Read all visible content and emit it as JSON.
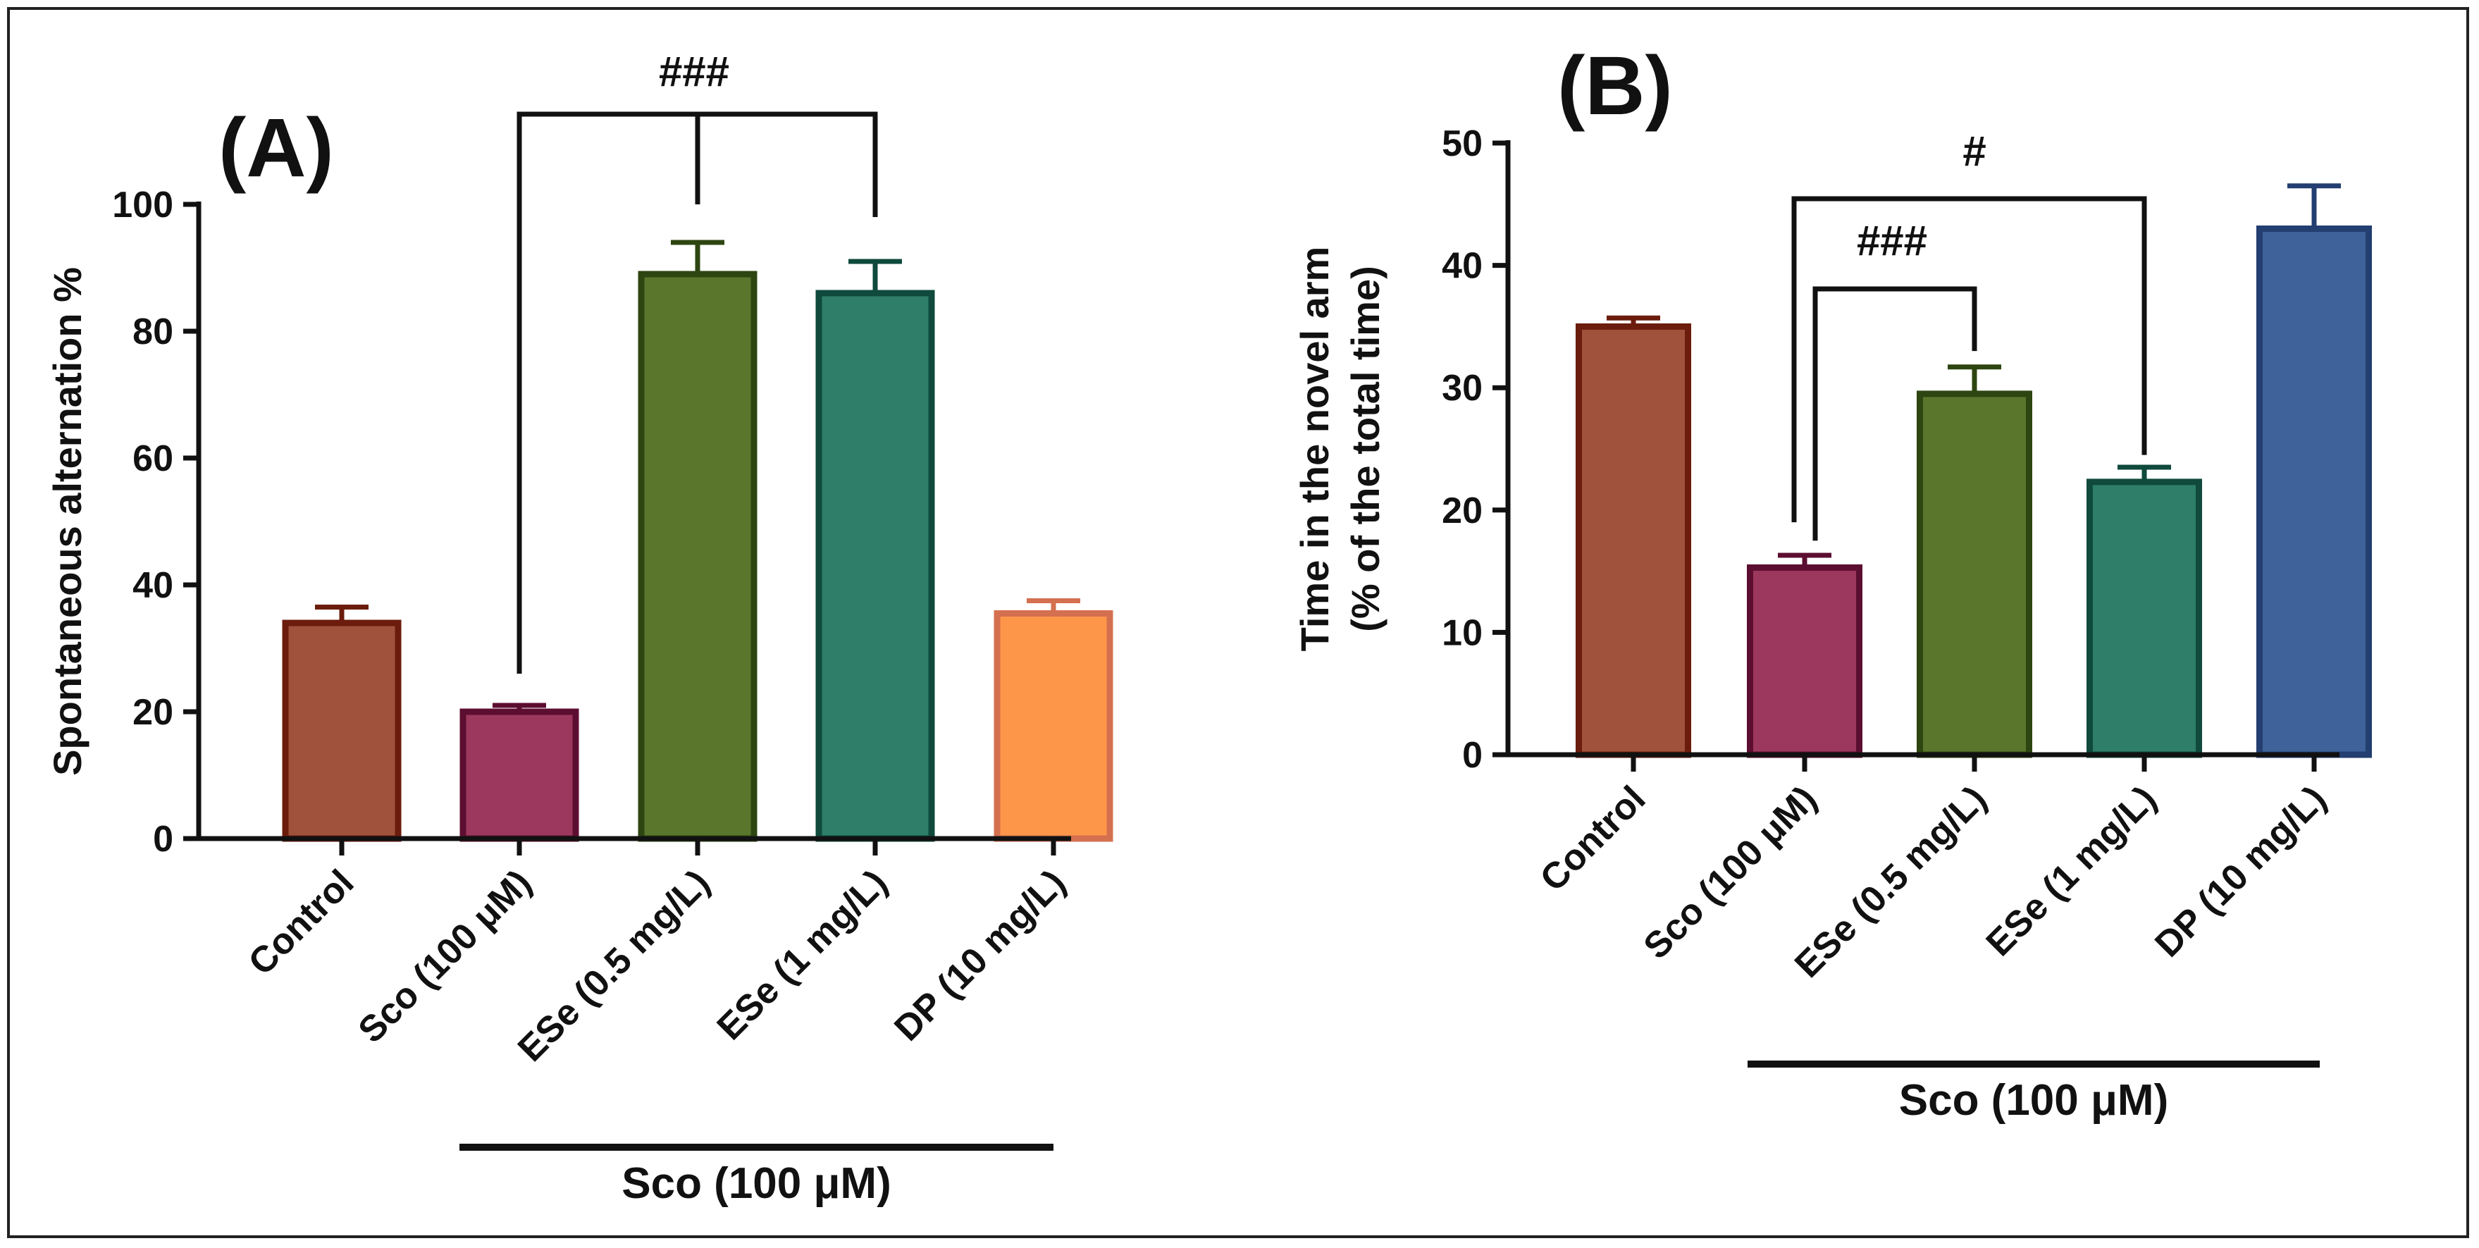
{
  "chart_data": [
    {
      "type": "bar",
      "panel_label": "(A)",
      "ylabel": "Spontaneous alternation %",
      "xlabel": "",
      "ylim": [
        0,
        100
      ],
      "yticks": [
        0,
        20,
        40,
        60,
        80,
        100
      ],
      "categories": [
        "Control",
        "Sco (100 μM)",
        "ESe (0.5 mg/L)",
        "ESe (1 mg/L)",
        "DP (10 mg/L)"
      ],
      "values": [
        34,
        20,
        89,
        86,
        35.5
      ],
      "errors": [
        2.5,
        1.0,
        5.0,
        5.0,
        2.0
      ],
      "fill_colors": [
        "#a0523c",
        "#9c385d",
        "#5a762c",
        "#2e7e69",
        "#fd9649"
      ],
      "edge_colors": [
        "#6b1c0c",
        "#5c0e30",
        "#2d4511",
        "#0f4a3c",
        "#d4704f"
      ],
      "comparisons": [
        {
          "from": "Sco (100 μM)",
          "to": [
            "ESe (0.5 mg/L)",
            "ESe (1 mg/L)"
          ],
          "label": "###"
        }
      ],
      "group_underline_label": "Sco (100 μM)",
      "group_underline_covers": [
        "ESe (0.5 mg/L)",
        "ESe (1 mg/L)",
        "DP (10 mg/L)"
      ]
    },
    {
      "type": "bar",
      "panel_label": "(B)",
      "ylabel": [
        "Time in the novel arm",
        "(% of the total time)"
      ],
      "xlabel": "",
      "ylim": [
        0,
        50
      ],
      "yticks": [
        0,
        10,
        20,
        30,
        40,
        50
      ],
      "categories": [
        "Control",
        "Sco (100 μM)",
        "ESe (0.5 mg/L)",
        "ESe (1 mg/L)",
        "DP (10 mg/L)"
      ],
      "values": [
        35,
        15.3,
        29.5,
        22.3,
        43
      ],
      "errors": [
        0.7,
        1.0,
        2.2,
        1.2,
        3.5
      ],
      "fill_colors": [
        "#a0523c",
        "#9c385d",
        "#5a762c",
        "#2e7e69",
        "#3e6299"
      ],
      "edge_colors": [
        "#6b1c0c",
        "#5c0e30",
        "#2d4511",
        "#0f4a3c",
        "#233e70"
      ],
      "comparisons": [
        {
          "from": "Sco (100 μM)",
          "to": [
            "ESe (0.5 mg/L)"
          ],
          "label": "###"
        },
        {
          "from": "Sco (100 μM)",
          "to": [
            "ESe (1 mg/L)"
          ],
          "label": "#"
        }
      ],
      "group_underline_label": "Sco (100 μM)",
      "group_underline_covers": [
        "Sco (100 μM)",
        "ESe (0.5 mg/L)",
        "ESe (1 mg/L)"
      ]
    }
  ]
}
